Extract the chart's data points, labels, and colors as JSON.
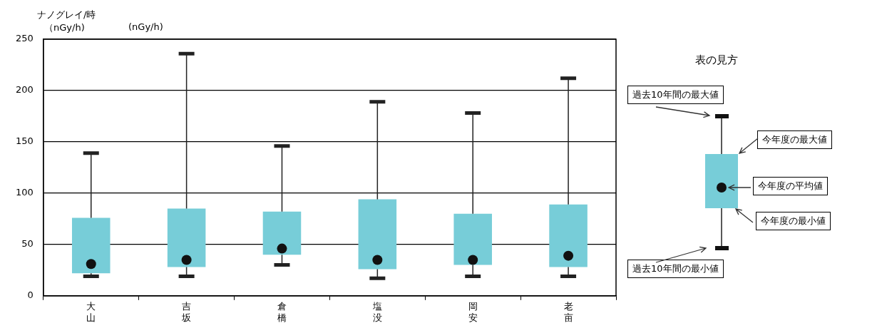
{
  "chart_data": {
    "type": "box",
    "ylabel": "ナノグレイ/時",
    "categories": [
      "大山",
      "吉坂",
      "倉橋",
      "塩没",
      "岡安",
      "老亩"
    ],
    "color": "#77cdd8",
    "boxes": [
      {
        "low": 19,
        "q1": 22,
        "q3": 76,
        "high": 139,
        "mean": 31
      },
      {
        "low": 19,
        "q1": 28,
        "q3": 85,
        "high": 236,
        "mean": 35
      },
      {
        "low": 30,
        "q1": 40,
        "q3": 82,
        "high": 146,
        "mean": 46
      },
      {
        "low": 17,
        "q1": 26,
        "q3": 94,
        "high": 189,
        "mean": 35
      },
      {
        "low": 19,
        "q1": 30,
        "q3": 80,
        "high": 178,
        "mean": 35
      },
      {
        "low": 19,
        "q1": 28,
        "q3": 89,
        "high": 212,
        "mean": 39
      }
    ],
    "ylim": [
      0,
      250
    ],
    "yticks": [
      0,
      50,
      100,
      150,
      200,
      250
    ],
    "grid": "y",
    "annotations": [
      "（nGy/h)",
      "(nGy/h)",
      "表の見方",
      "過去10年間の最大値",
      "今年度の最大値",
      "今年度の平均値",
      "今年度の最小値",
      "過去10年間の最小値"
    ]
  }
}
